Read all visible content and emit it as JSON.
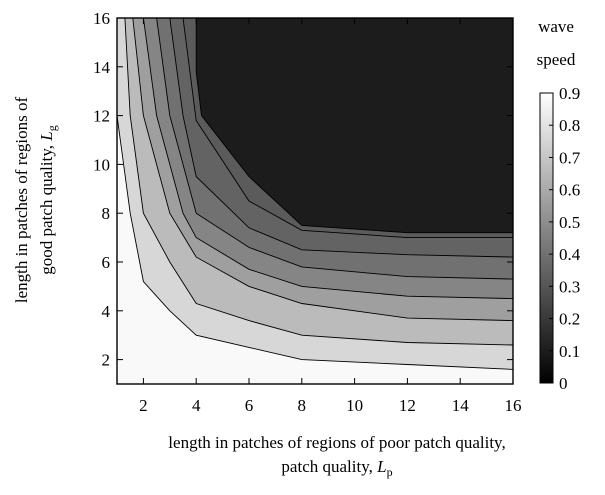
{
  "chart_data": {
    "type": "contour",
    "xlabel": "length in patches of regions of poor patch quality,",
    "xlabel_symbol": "L",
    "xlabel_subscript": "p",
    "ylabel": "length in patches of regions of good patch quality,",
    "ylabel_symbol": "L",
    "ylabel_subscript": "g",
    "xlim": [
      1,
      16
    ],
    "ylim": [
      1,
      16
    ],
    "xticks": [
      "2",
      "4",
      "6",
      "8",
      "10",
      "12",
      "14",
      "16"
    ],
    "yticks": [
      "2",
      "4",
      "6",
      "8",
      "10",
      "12",
      "14",
      "16"
    ],
    "colorbar_title": [
      "wave",
      "speed"
    ],
    "colorbar_ticks": [
      "0",
      "0.1",
      "0.2",
      "0.3",
      "0.4",
      "0.5",
      "0.6",
      "0.7",
      "0.8",
      "0.9"
    ],
    "colorbar_range": [
      0,
      0.9
    ],
    "colormap": [
      "#000000",
      "#ffffff"
    ],
    "contour_levels": [
      {
        "level": 0.8,
        "points": [
          [
            1,
            12
          ],
          [
            1.5,
            8
          ],
          [
            2,
            5.2
          ],
          [
            3,
            4
          ],
          [
            4,
            3
          ],
          [
            6,
            2.5
          ],
          [
            8,
            2
          ],
          [
            12,
            1.8
          ],
          [
            16,
            1.6
          ]
        ]
      },
      {
        "level": 0.7,
        "points": [
          [
            1.3,
            16
          ],
          [
            1.5,
            12
          ],
          [
            2,
            8
          ],
          [
            3,
            6
          ],
          [
            4,
            4.3
          ],
          [
            6,
            3.6
          ],
          [
            8,
            3
          ],
          [
            12,
            2.7
          ],
          [
            16,
            2.6
          ]
        ]
      },
      {
        "level": 0.6,
        "points": [
          [
            1.6,
            16
          ],
          [
            2,
            12
          ],
          [
            3,
            8
          ],
          [
            4,
            6.2
          ],
          [
            6,
            5
          ],
          [
            8,
            4.3
          ],
          [
            12,
            3.7
          ],
          [
            16,
            3.6
          ]
        ]
      },
      {
        "level": 0.5,
        "points": [
          [
            2,
            16
          ],
          [
            2.5,
            12
          ],
          [
            3.5,
            8
          ],
          [
            4,
            7
          ],
          [
            6,
            5.7
          ],
          [
            8,
            5
          ],
          [
            12,
            4.6
          ],
          [
            16,
            4.5
          ]
        ]
      },
      {
        "level": 0.4,
        "points": [
          [
            2.5,
            16
          ],
          [
            3,
            12
          ],
          [
            3.5,
            10
          ],
          [
            4,
            8
          ],
          [
            6,
            6.6
          ],
          [
            8,
            5.8
          ],
          [
            12,
            5.4
          ],
          [
            16,
            5.3
          ]
        ]
      },
      {
        "level": 0.35,
        "points": [
          [
            3,
            16
          ],
          [
            3.5,
            12
          ],
          [
            4,
            9.5
          ],
          [
            6,
            7.4
          ],
          [
            8,
            6.5
          ],
          [
            12,
            6.3
          ],
          [
            16,
            6.2
          ]
        ]
      },
      {
        "level": 0.32,
        "points": [
          [
            3.5,
            16
          ],
          [
            4,
            11.8
          ],
          [
            6,
            8.5
          ],
          [
            8,
            7.3
          ],
          [
            12,
            7
          ],
          [
            16,
            7
          ]
        ]
      },
      {
        "level": 0.3,
        "points": [
          [
            4,
            16
          ],
          [
            4,
            13.8
          ],
          [
            4.2,
            12
          ],
          [
            6,
            9.5
          ],
          [
            8,
            7.5
          ],
          [
            12,
            7.2
          ],
          [
            16,
            7.2
          ]
        ]
      }
    ],
    "region_values": [
      0.88,
      0.76,
      0.66,
      0.56,
      0.47,
      0.4,
      0.35,
      0.32,
      0.29,
      0.1
    ],
    "grid": false,
    "legend": "none"
  }
}
